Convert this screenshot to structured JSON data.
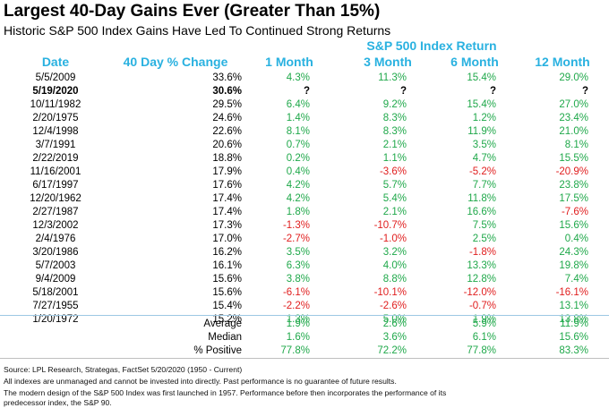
{
  "chart_data": {
    "type": "table",
    "title": "Largest 40-Day Gains Ever (Greater Than 15%)",
    "subtitle": "Historic S&P 500 Index Gains Have Led To Continued Strong Returns",
    "group_header": "S&P 500 Index Return",
    "columns": [
      "Date",
      "40 Day % Change",
      "1 Month",
      "3 Month",
      "6 Month",
      "12 Month"
    ],
    "rows": [
      {
        "date": "5/5/2009",
        "change": "33.6%",
        "m1": "4.3%",
        "m3": "11.3%",
        "m6": "15.4%",
        "m12": "29.0%",
        "bold": false
      },
      {
        "date": "5/19/2020",
        "change": "30.6%",
        "m1": "?",
        "m3": "?",
        "m6": "?",
        "m12": "?",
        "bold": true
      },
      {
        "date": "10/11/1982",
        "change": "29.5%",
        "m1": "6.4%",
        "m3": "9.2%",
        "m6": "15.4%",
        "m12": "27.0%",
        "bold": false
      },
      {
        "date": "2/20/1975",
        "change": "24.6%",
        "m1": "1.4%",
        "m3": "8.3%",
        "m6": "1.2%",
        "m12": "23.4%",
        "bold": false
      },
      {
        "date": "12/4/1998",
        "change": "22.6%",
        "m1": "8.1%",
        "m3": "8.3%",
        "m6": "11.9%",
        "m12": "21.0%",
        "bold": false
      },
      {
        "date": "3/7/1991",
        "change": "20.6%",
        "m1": "0.7%",
        "m3": "2.1%",
        "m6": "3.5%",
        "m12": "8.1%",
        "bold": false
      },
      {
        "date": "2/22/2019",
        "change": "18.8%",
        "m1": "0.2%",
        "m3": "1.1%",
        "m6": "4.7%",
        "m12": "15.5%",
        "bold": false
      },
      {
        "date": "11/16/2001",
        "change": "17.9%",
        "m1": "0.4%",
        "m3": "-3.6%",
        "m6": "-5.2%",
        "m12": "-20.9%",
        "bold": false
      },
      {
        "date": "6/17/1997",
        "change": "17.6%",
        "m1": "4.2%",
        "m3": "5.7%",
        "m6": "7.7%",
        "m12": "23.8%",
        "bold": false
      },
      {
        "date": "12/20/1962",
        "change": "17.4%",
        "m1": "4.2%",
        "m3": "5.4%",
        "m6": "11.8%",
        "m12": "17.5%",
        "bold": false
      },
      {
        "date": "2/27/1987",
        "change": "17.4%",
        "m1": "1.8%",
        "m3": "2.1%",
        "m6": "16.6%",
        "m12": "-7.6%",
        "bold": false
      },
      {
        "date": "12/3/2002",
        "change": "17.3%",
        "m1": "-1.3%",
        "m3": "-10.7%",
        "m6": "7.5%",
        "m12": "15.6%",
        "bold": false
      },
      {
        "date": "2/4/1976",
        "change": "17.0%",
        "m1": "-2.7%",
        "m3": "-1.0%",
        "m6": "2.5%",
        "m12": "0.4%",
        "bold": false
      },
      {
        "date": "3/20/1986",
        "change": "16.2%",
        "m1": "3.5%",
        "m3": "3.2%",
        "m6": "-1.8%",
        "m12": "24.3%",
        "bold": false
      },
      {
        "date": "5/7/2003",
        "change": "16.1%",
        "m1": "6.3%",
        "m3": "4.0%",
        "m6": "13.3%",
        "m12": "19.8%",
        "bold": false
      },
      {
        "date": "9/4/2009",
        "change": "15.6%",
        "m1": "3.8%",
        "m3": "8.8%",
        "m6": "12.8%",
        "m12": "7.4%",
        "bold": false
      },
      {
        "date": "5/18/2001",
        "change": "15.6%",
        "m1": "-6.1%",
        "m3": "-10.1%",
        "m6": "-12.0%",
        "m12": "-16.1%",
        "bold": false
      },
      {
        "date": "7/27/1955",
        "change": "15.4%",
        "m1": "-2.2%",
        "m3": "-2.6%",
        "m6": "-0.7%",
        "m12": "13.1%",
        "bold": false
      },
      {
        "date": "1/20/1972",
        "change": "15.2%",
        "m1": "1.3%",
        "m3": "5.0%",
        "m6": "1.9%",
        "m12": "13.8%",
        "bold": false
      }
    ],
    "summary": [
      {
        "label": "Average",
        "m1": "1.9%",
        "m3": "2.6%",
        "m6": "5.9%",
        "m12": "11.9%"
      },
      {
        "label": "Median",
        "m1": "1.6%",
        "m3": "3.6%",
        "m6": "6.1%",
        "m12": "15.6%"
      },
      {
        "label": "% Positive",
        "m1": "77.8%",
        "m3": "72.2%",
        "m6": "77.8%",
        "m12": "83.3%"
      }
    ],
    "colors": {
      "header": "#29b1e0",
      "positive": "#1fa84a",
      "negative": "#e01e1e"
    }
  },
  "footnotes": [
    "Source: LPL Research, Strategas, FactSet 5/20/2020 (1950 - Current)",
    "All indexes are unmanaged and cannot be invested into directly. Past performance is no guarantee of future results.",
    "The modern design of the S&P 500 Index was first launched in 1957. Performance before then incorporates the performance of its",
    "predecessor index, the S&P 90."
  ]
}
